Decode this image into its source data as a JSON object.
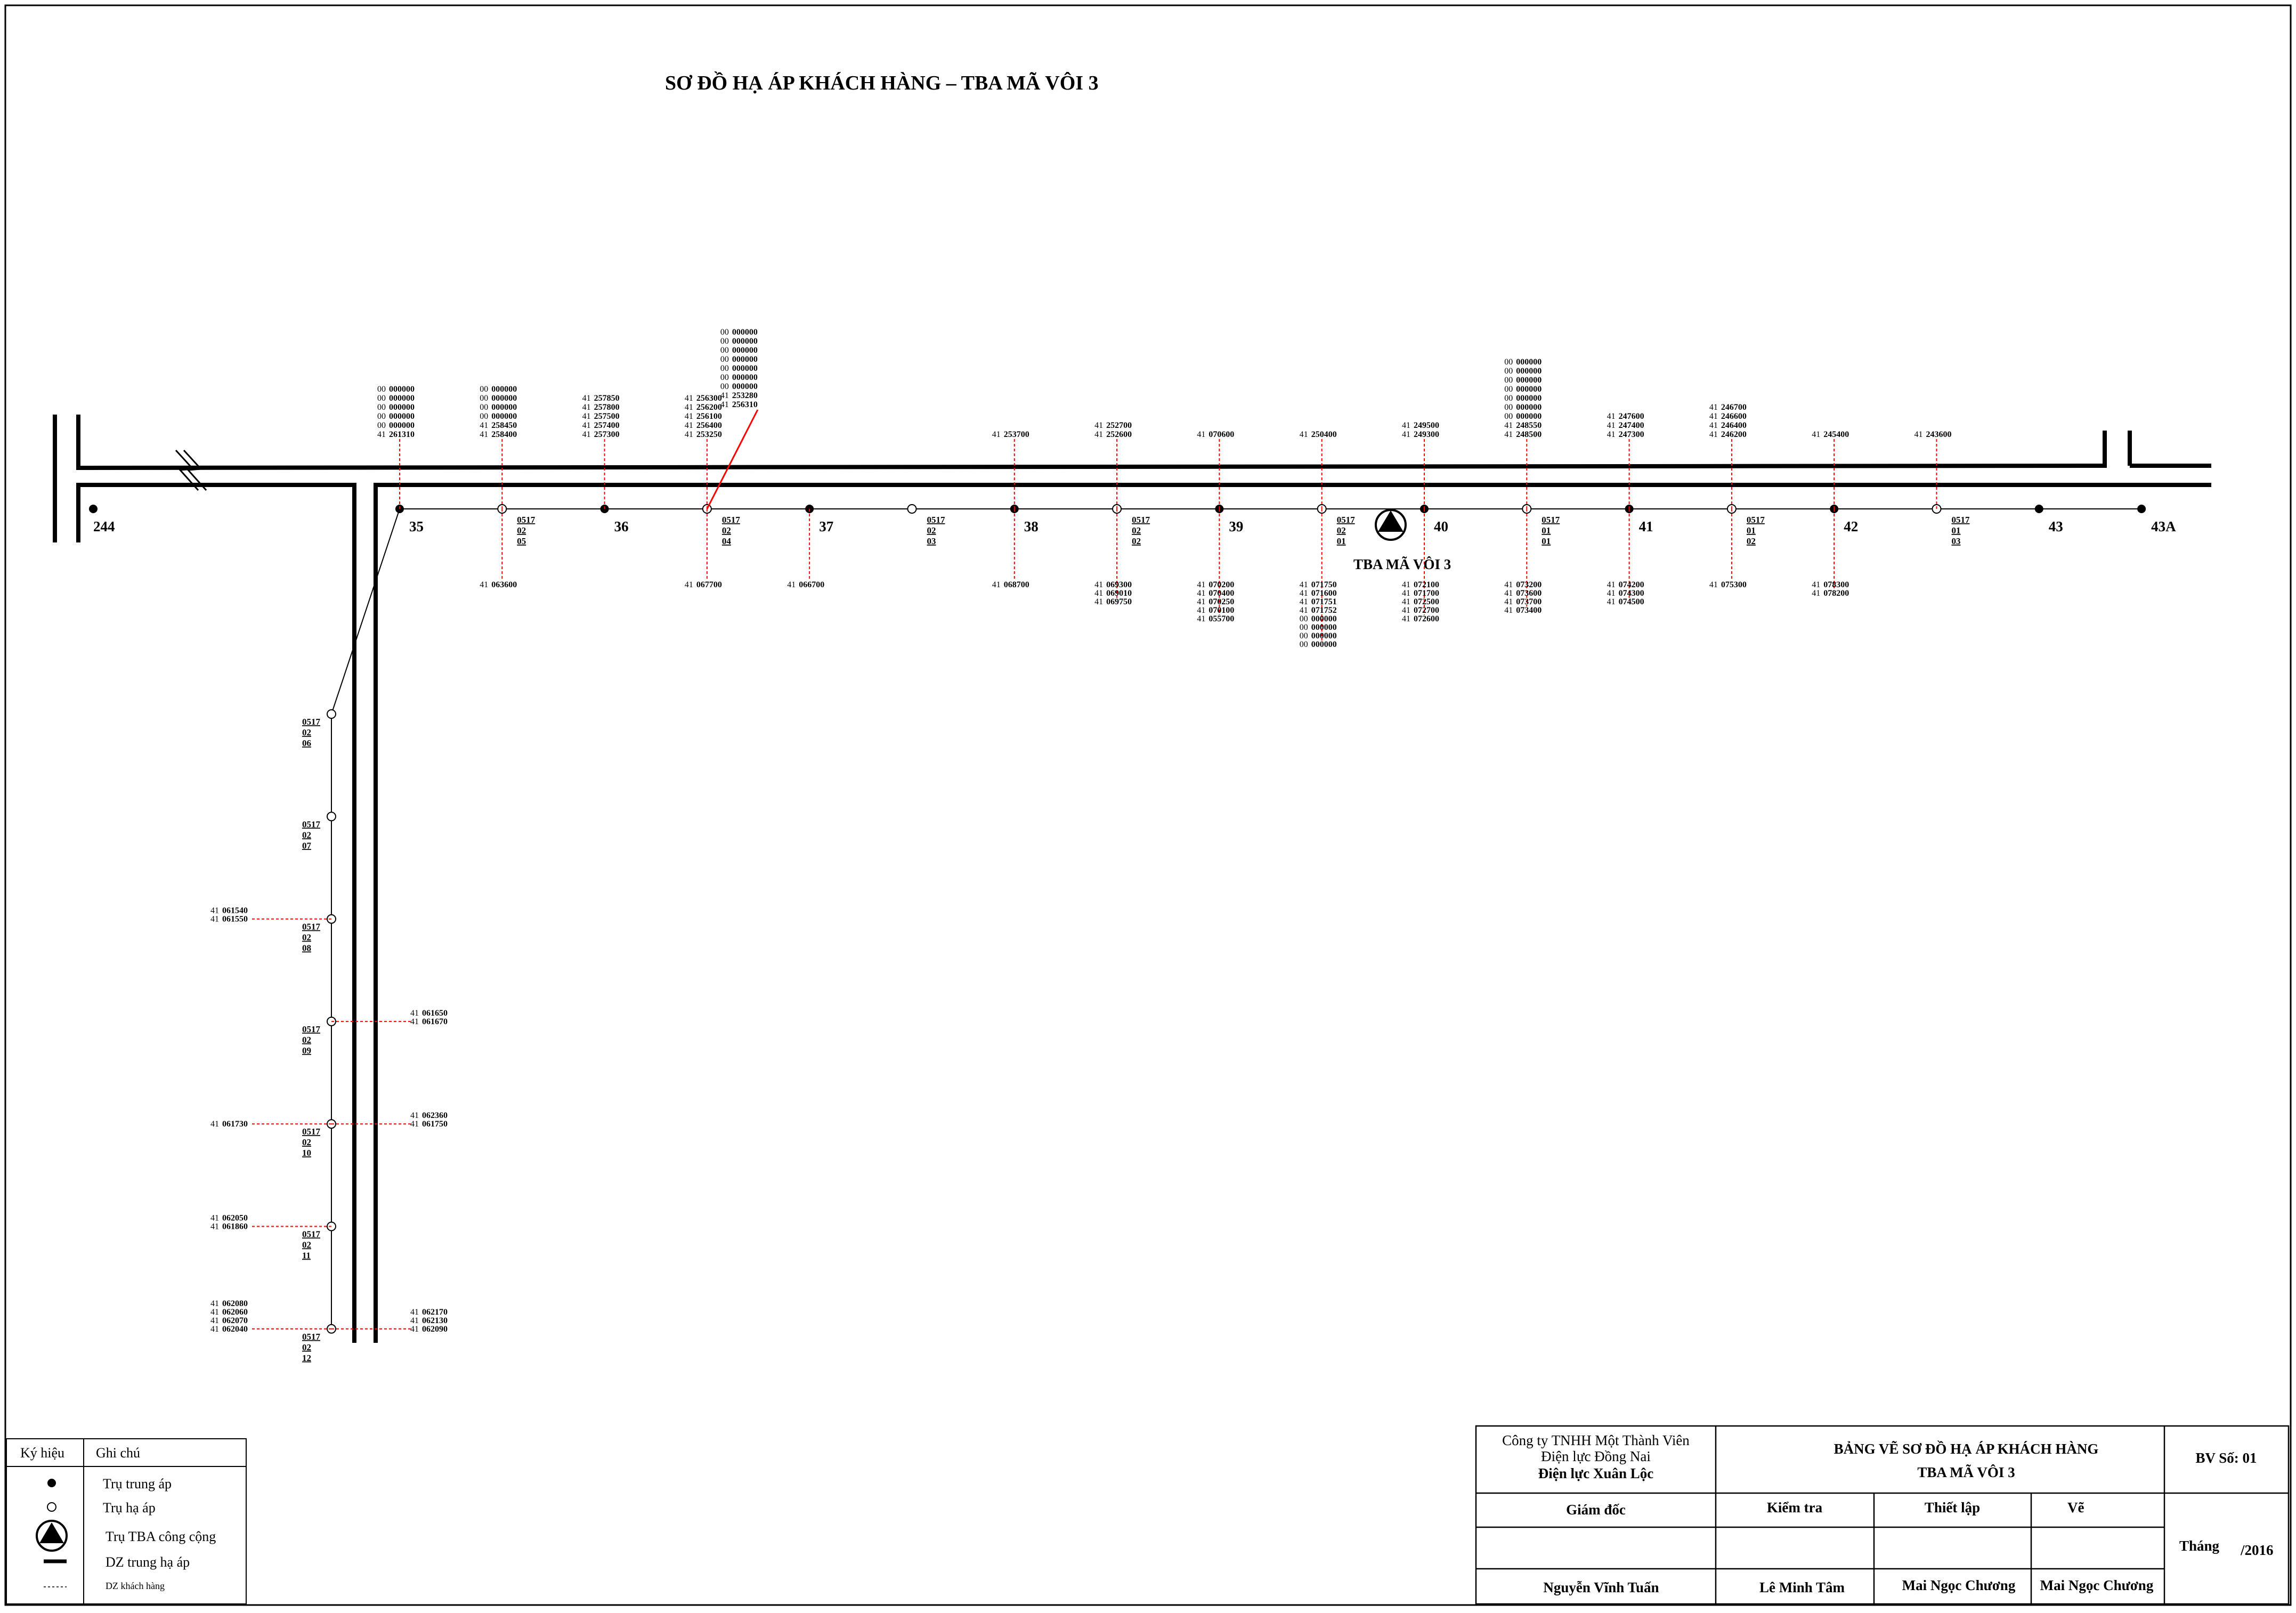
{
  "title": "SƠ ĐỒ HẠ ÁP KHÁCH HÀNG – TBA MÃ VÔI 3",
  "substation_label": "TBA MÃ VÔI 3",
  "left_pole_label": "244",
  "main_poles": [
    {
      "label": "35",
      "type": "trung-ap"
    },
    {
      "label": "",
      "type": "ha-ap",
      "code": [
        "0517",
        "02",
        "05"
      ]
    },
    {
      "label": "36",
      "type": "trung-ap"
    },
    {
      "label": "",
      "type": "ha-ap",
      "code": [
        "0517",
        "02",
        "04"
      ]
    },
    {
      "label": "37",
      "type": "trung-ap"
    },
    {
      "label": "",
      "type": "ha-ap",
      "code": [
        "0517",
        "02",
        "03"
      ]
    },
    {
      "label": "38",
      "type": "trung-ap"
    },
    {
      "label": "",
      "type": "ha-ap",
      "code": [
        "0517",
        "02",
        "02"
      ]
    },
    {
      "label": "39",
      "type": "trung-ap"
    },
    {
      "label": "",
      "type": "ha-ap",
      "code": [
        "0517",
        "02",
        "01"
      ]
    },
    {
      "label": "40",
      "type": "trung-ap"
    },
    {
      "label": "",
      "type": "ha-ap",
      "code": [
        "0517",
        "01",
        "01"
      ]
    },
    {
      "label": "41",
      "type": "trung-ap"
    },
    {
      "label": "",
      "type": "ha-ap",
      "code": [
        "0517",
        "01",
        "02"
      ]
    },
    {
      "label": "42",
      "type": "trung-ap"
    },
    {
      "label": "",
      "type": "ha-ap",
      "code": [
        "0517",
        "01",
        "03"
      ]
    },
    {
      "label": "43",
      "type": "trung-ap"
    },
    {
      "label": "43A",
      "type": "trung-ap"
    }
  ],
  "branch_poles": [
    {
      "code": [
        "0517",
        "02",
        "06"
      ]
    },
    {
      "code": [
        "0517",
        "02",
        "07"
      ]
    },
    {
      "code": [
        "0517",
        "02",
        "08"
      ]
    },
    {
      "code": [
        "0517",
        "02",
        "09"
      ]
    },
    {
      "code": [
        "0517",
        "02",
        "10"
      ]
    },
    {
      "code": [
        "0517",
        "02",
        "11"
      ]
    },
    {
      "code": [
        "0517",
        "02",
        "12"
      ]
    }
  ],
  "customers_above": [
    {
      "pole": 0,
      "codes": [
        [
          "00",
          "000000"
        ],
        [
          "00",
          "000000"
        ],
        [
          "00",
          "000000"
        ],
        [
          "00",
          "000000"
        ],
        [
          "00",
          "000000"
        ],
        [
          "41",
          "261310"
        ]
      ]
    },
    {
      "pole": 1,
      "codes": [
        [
          "00",
          "000000"
        ],
        [
          "00",
          "000000"
        ],
        [
          "00",
          "000000"
        ],
        [
          "00",
          "000000"
        ],
        [
          "41",
          "258450"
        ],
        [
          "41",
          "258400"
        ]
      ]
    },
    {
      "pole": 2,
      "codes": [
        [
          "41",
          "257850"
        ],
        [
          "41",
          "257800"
        ],
        [
          "41",
          "257500"
        ],
        [
          "41",
          "257400"
        ],
        [
          "41",
          "257300"
        ]
      ]
    },
    {
      "pole": 3,
      "codes": [
        [
          "41",
          "256300"
        ],
        [
          "41",
          "256200"
        ],
        [
          "41",
          "256100"
        ],
        [
          "41",
          "256400"
        ],
        [
          "41",
          "253250"
        ]
      ]
    },
    {
      "pole": 3,
      "slanted": true,
      "codes": [
        [
          "00",
          "000000"
        ],
        [
          "00",
          "000000"
        ],
        [
          "00",
          "000000"
        ],
        [
          "00",
          "000000"
        ],
        [
          "00",
          "000000"
        ],
        [
          "00",
          "000000"
        ],
        [
          "00",
          "000000"
        ],
        [
          "41",
          "253280"
        ],
        [
          "41",
          "256310"
        ]
      ]
    },
    {
      "pole": 6,
      "codes": [
        [
          "41",
          "253700"
        ]
      ]
    },
    {
      "pole": 7,
      "codes": [
        [
          "41",
          "252700"
        ],
        [
          "41",
          "252600"
        ]
      ]
    },
    {
      "pole": 8,
      "codes": [
        [
          "41",
          "070600"
        ]
      ]
    },
    {
      "pole": 9,
      "codes": [
        [
          "41",
          "250400"
        ]
      ]
    },
    {
      "pole": 10,
      "codes": [
        [
          "41",
          "249500"
        ],
        [
          "41",
          "249300"
        ]
      ]
    },
    {
      "pole": 11,
      "codes": [
        [
          "00",
          "000000"
        ],
        [
          "00",
          "000000"
        ],
        [
          "00",
          "000000"
        ],
        [
          "00",
          "000000"
        ],
        [
          "00",
          "000000"
        ],
        [
          "00",
          "000000"
        ],
        [
          "00",
          "000000"
        ],
        [
          "41",
          "248550"
        ],
        [
          "41",
          "248500"
        ]
      ]
    },
    {
      "pole": 12,
      "codes": [
        [
          "41",
          "247600"
        ],
        [
          "41",
          "247400"
        ],
        [
          "41",
          "247300"
        ]
      ]
    },
    {
      "pole": 13,
      "codes": [
        [
          "41",
          "246700"
        ],
        [
          "41",
          "246600"
        ],
        [
          "41",
          "246400"
        ],
        [
          "41",
          "246200"
        ]
      ]
    },
    {
      "pole": 14,
      "codes": [
        [
          "41",
          "245400"
        ]
      ]
    },
    {
      "pole": 15,
      "codes": [
        [
          "41",
          "243600"
        ]
      ]
    }
  ],
  "customers_below": [
    {
      "pole": 1,
      "codes": [
        [
          "41",
          "063600"
        ]
      ]
    },
    {
      "pole": 3,
      "codes": [
        [
          "41",
          "067700"
        ]
      ]
    },
    {
      "pole": 4,
      "codes": [
        [
          "41",
          "066700"
        ]
      ]
    },
    {
      "pole": 6,
      "codes": [
        [
          "41",
          "068700"
        ]
      ]
    },
    {
      "pole": 7,
      "codes": [
        [
          "41",
          "069300"
        ],
        [
          "41",
          "069010"
        ],
        [
          "41",
          "069750"
        ]
      ]
    },
    {
      "pole": 8,
      "codes": [
        [
          "41",
          "070200"
        ],
        [
          "41",
          "070400"
        ],
        [
          "41",
          "070250"
        ],
        [
          "41",
          "070100"
        ],
        [
          "41",
          "055700"
        ]
      ]
    },
    {
      "pole": 9,
      "codes": [
        [
          "41",
          "071750"
        ],
        [
          "41",
          "071600"
        ],
        [
          "41",
          "071751"
        ],
        [
          "41",
          "071752"
        ],
        [
          "00",
          "000000"
        ],
        [
          "00",
          "000000"
        ],
        [
          "00",
          "000000"
        ],
        [
          "00",
          "000000"
        ]
      ]
    },
    {
      "pole": 10,
      "codes": [
        [
          "41",
          "072100"
        ],
        [
          "41",
          "071700"
        ],
        [
          "41",
          "072500"
        ],
        [
          "41",
          "072700"
        ],
        [
          "41",
          "072600"
        ]
      ]
    },
    {
      "pole": 11,
      "codes": [
        [
          "41",
          "073200"
        ],
        [
          "41",
          "073600"
        ],
        [
          "41",
          "073700"
        ],
        [
          "41",
          "073400"
        ]
      ]
    },
    {
      "pole": 12,
      "codes": [
        [
          "41",
          "074200"
        ],
        [
          "41",
          "074300"
        ],
        [
          "41",
          "074500"
        ]
      ]
    },
    {
      "pole": 13,
      "codes": [
        [
          "41",
          "075300"
        ]
      ]
    },
    {
      "pole": 14,
      "codes": [
        [
          "41",
          "078300"
        ],
        [
          "41",
          "078200"
        ]
      ]
    }
  ],
  "customers_branch_left": [
    {
      "pole": 2,
      "codes": [
        [
          "41",
          "061540"
        ],
        [
          "41",
          "061550"
        ]
      ]
    },
    {
      "pole": 4,
      "codes": [
        [
          "41",
          "061730"
        ]
      ]
    },
    {
      "pole": 5,
      "codes": [
        [
          "41",
          "062050"
        ],
        [
          "41",
          "061860"
        ]
      ]
    },
    {
      "pole": 6,
      "codes": [
        [
          "41",
          "062080"
        ],
        [
          "41",
          "062060"
        ],
        [
          "41",
          "062070"
        ],
        [
          "41",
          "062040"
        ]
      ]
    }
  ],
  "customers_branch_right": [
    {
      "pole": 3,
      "codes": [
        [
          "41",
          "061650"
        ],
        [
          "41",
          "061670"
        ]
      ]
    },
    {
      "pole": 4,
      "codes": [
        [
          "41",
          "062360"
        ],
        [
          "41",
          "061750"
        ]
      ]
    },
    {
      "pole": 6,
      "codes": [
        [
          "41",
          "062170"
        ],
        [
          "41",
          "062130"
        ],
        [
          "41",
          "062090"
        ]
      ]
    }
  ],
  "legend": {
    "header_symbol": "Ký hiệu",
    "header_note": "Ghi chú",
    "items": [
      {
        "icon": "filled-dot",
        "text": "Trụ trung áp"
      },
      {
        "icon": "open-dot",
        "text": "Trụ hạ áp"
      },
      {
        "icon": "substation-symbol",
        "text": "Trụ TBA công cộng"
      },
      {
        "icon": "thick-line",
        "text": "DZ trung hạ áp"
      },
      {
        "icon": "dashed-line",
        "text": "DZ khách hàng"
      }
    ]
  },
  "title_block": {
    "company_line1": "Công ty TNHH Một Thành Viên",
    "company_line2": "Điện lực Đồng Nai",
    "company_line3": "Điện lực Xuân Lộc",
    "drawing_title": "BẢNG VẼ SƠ ĐỒ HẠ ÁP KHÁCH HÀNG",
    "drawing_subtitle": "TBA MÃ VÔI 3",
    "sheet_no": "BV Số: 01",
    "role_director": "Giám đốc",
    "role_check": "Kiểm tra",
    "role_setup": "Thiết lập",
    "role_draw": "Vẽ",
    "date_month": "Tháng",
    "date_year": "/2016",
    "name_director": "Nguyễn Vĩnh Tuấn",
    "name_check": "Lê Minh Tâm",
    "name_setup": "Mai Ngọc Chương",
    "name_draw": "Mai Ngọc Chương"
  },
  "colors": {
    "line": "#000000",
    "customer_line": "#ff0000",
    "background": "#ffffff"
  }
}
